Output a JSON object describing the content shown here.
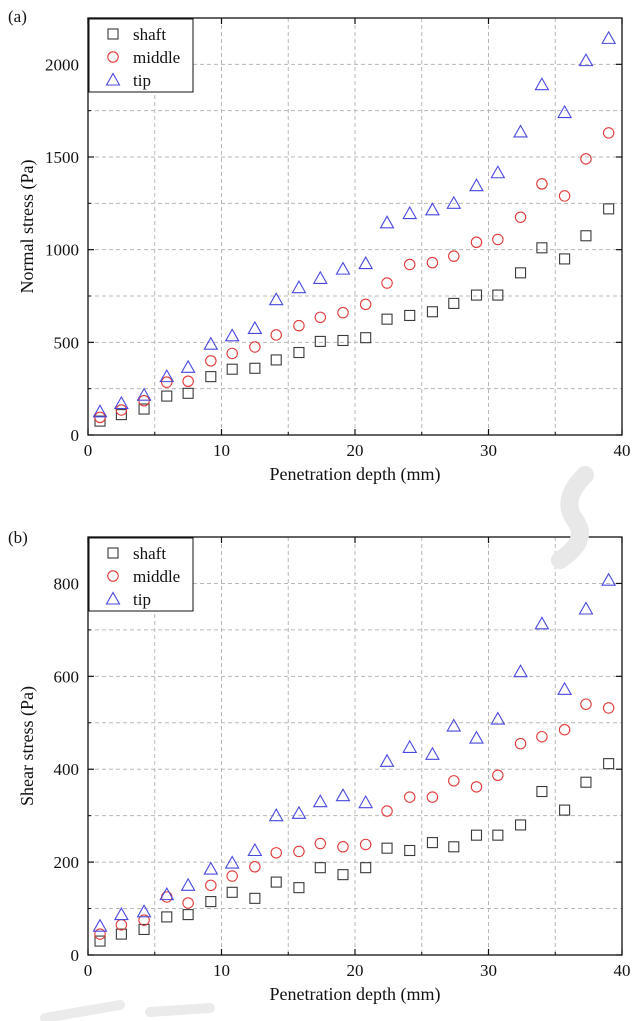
{
  "chart_data": [
    {
      "type": "scatter",
      "panel_label": "(a)",
      "xlabel": "Penetration depth (mm)",
      "ylabel": "Normal stress (Pa)",
      "xlim": [
        0,
        40
      ],
      "ylim": [
        0,
        2250
      ],
      "xticks": [
        0,
        10,
        20,
        30,
        40
      ],
      "yticks": [
        0,
        500,
        1000,
        1500,
        2000
      ],
      "grid": true,
      "legend_position": "top-left",
      "x": [
        0.9,
        2.5,
        4.2,
        5.9,
        7.5,
        9.2,
        10.8,
        12.5,
        14.1,
        15.8,
        17.4,
        19.1,
        20.8,
        22.4,
        24.1,
        25.8,
        27.4,
        29.1,
        30.7,
        32.4,
        34.0,
        35.7,
        37.3,
        39.0
      ],
      "series": [
        {
          "name": "shaft",
          "marker": "square",
          "color": "#3a3a3a",
          "values": [
            75,
            110,
            140,
            210,
            225,
            315,
            355,
            360,
            405,
            445,
            505,
            510,
            525,
            625,
            645,
            665,
            710,
            755,
            755,
            875,
            1010,
            950,
            1075,
            1220
          ]
        },
        {
          "name": "middle",
          "marker": "circle",
          "color": "#e03a3a",
          "values": [
            95,
            135,
            185,
            285,
            290,
            400,
            440,
            475,
            540,
            590,
            635,
            660,
            705,
            820,
            920,
            930,
            965,
            1040,
            1055,
            1175,
            1355,
            1290,
            1490,
            1630
          ]
        },
        {
          "name": "tip",
          "marker": "triangle",
          "color": "#4848e0",
          "values": [
            125,
            170,
            215,
            315,
            365,
            490,
            535,
            575,
            730,
            795,
            845,
            895,
            925,
            1145,
            1195,
            1215,
            1250,
            1345,
            1415,
            1635,
            1890,
            1740,
            2020,
            2140
          ]
        }
      ]
    },
    {
      "type": "scatter",
      "panel_label": "(b)",
      "xlabel": "Penetration depth (mm)",
      "ylabel": "Shear stress (Pa)",
      "xlim": [
        0,
        40
      ],
      "ylim": [
        0,
        900
      ],
      "xticks": [
        0,
        10,
        20,
        30,
        40
      ],
      "yticks": [
        0,
        200,
        400,
        600,
        800
      ],
      "grid": true,
      "legend_position": "top-left",
      "x": [
        0.9,
        2.5,
        4.2,
        5.9,
        7.5,
        9.2,
        10.8,
        12.5,
        14.1,
        15.8,
        17.4,
        19.1,
        20.8,
        22.4,
        24.1,
        25.8,
        27.4,
        29.1,
        30.7,
        32.4,
        34.0,
        35.7,
        37.3,
        39.0
      ],
      "series": [
        {
          "name": "shaft",
          "marker": "square",
          "color": "#3a3a3a",
          "values": [
            30,
            45,
            55,
            82,
            87,
            115,
            135,
            122,
            157,
            145,
            188,
            173,
            188,
            230,
            225,
            242,
            233,
            258,
            258,
            280,
            352,
            312,
            372,
            412
          ]
        },
        {
          "name": "middle",
          "marker": "circle",
          "color": "#e03a3a",
          "values": [
            45,
            65,
            75,
            125,
            112,
            150,
            170,
            190,
            220,
            223,
            240,
            233,
            238,
            310,
            340,
            340,
            375,
            362,
            387,
            455,
            470,
            485,
            540,
            532
          ]
        },
        {
          "name": "tip",
          "marker": "triangle",
          "color": "#4848e0",
          "values": [
            62,
            87,
            93,
            130,
            150,
            185,
            198,
            225,
            300,
            305,
            330,
            343,
            328,
            417,
            447,
            432,
            493,
            467,
            508,
            610,
            713,
            572,
            745,
            807
          ]
        }
      ]
    }
  ]
}
